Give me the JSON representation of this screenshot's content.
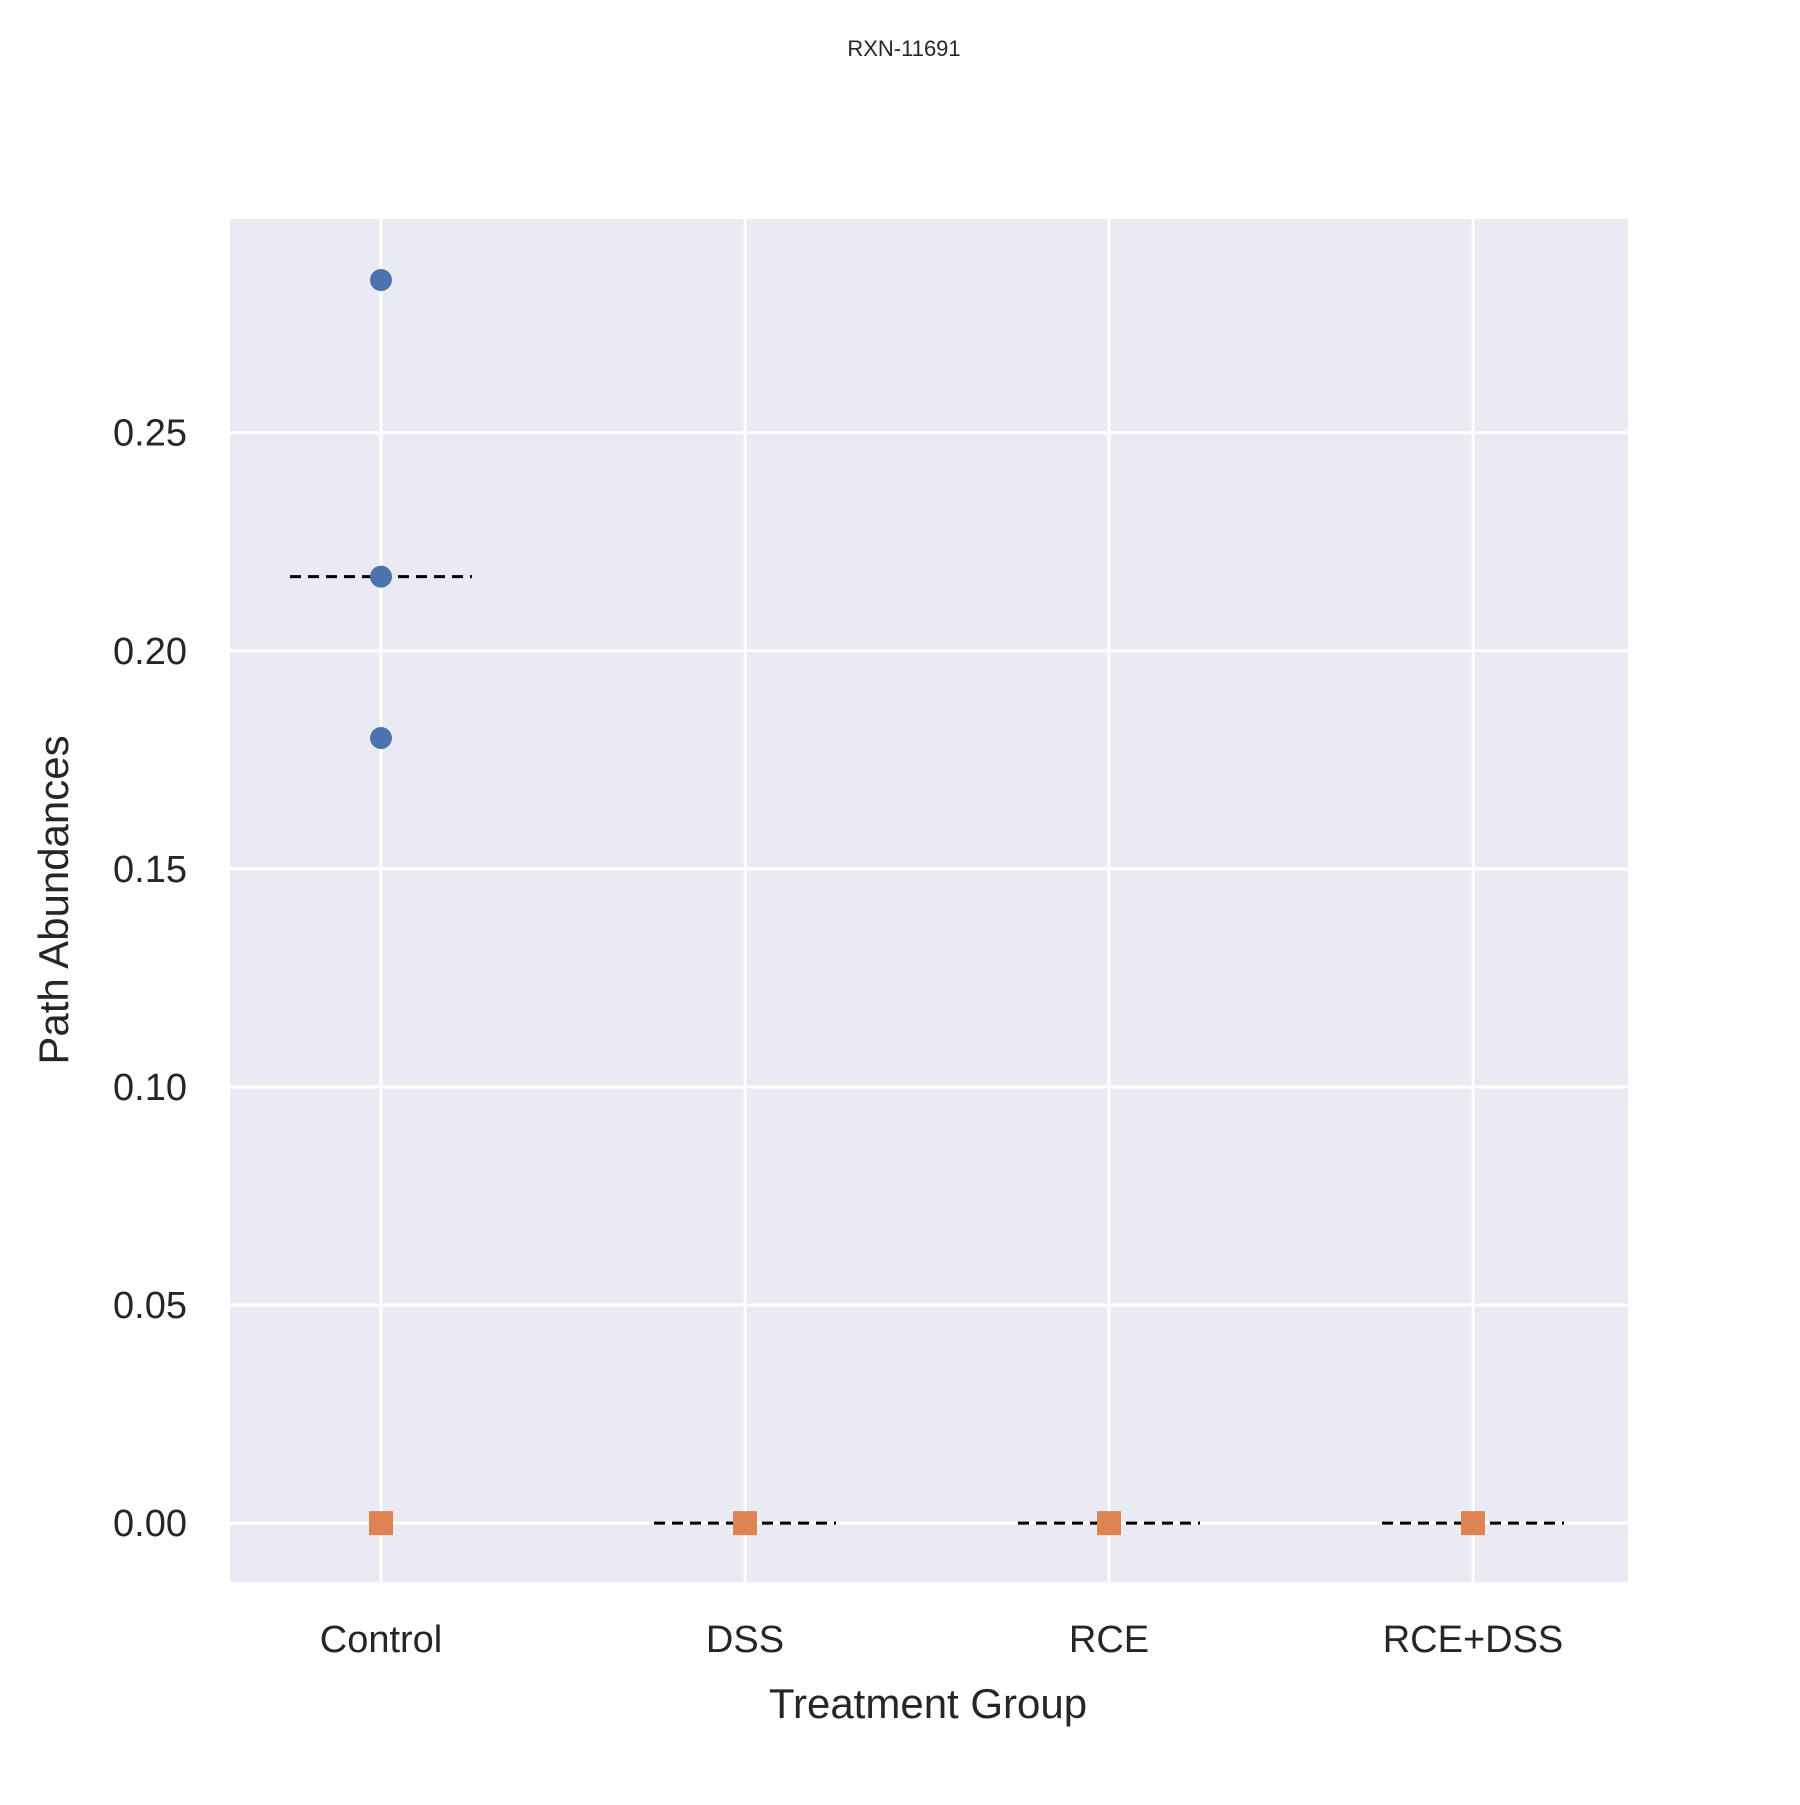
{
  "chart_data": {
    "type": "scatter",
    "title": "RXN-11691",
    "xlabel": "Treatment Group",
    "ylabel": "Path Abundances",
    "categories": [
      "Control",
      "DSS",
      "RCE",
      "RCE+DSS"
    ],
    "ylim": [
      -0.0135,
      0.299
    ],
    "yticks": [
      "0.00",
      "0.05",
      "0.10",
      "0.15",
      "0.20",
      "0.25"
    ],
    "grid": true,
    "legend": "none",
    "colors": {
      "background": "#eaeaf2",
      "grid": "#ffffff",
      "circle_series": "#4c72b0",
      "square_series": "#dd8452",
      "mean_line": "#000000"
    },
    "series": [
      {
        "marker": "circle",
        "points": [
          {
            "category": "Control",
            "value": 0.285
          },
          {
            "category": "Control",
            "value": 0.217
          },
          {
            "category": "Control",
            "value": 0.18
          }
        ]
      },
      {
        "marker": "square",
        "points": [
          {
            "category": "Control",
            "value": 0.0
          },
          {
            "category": "DSS",
            "value": 0.0
          },
          {
            "category": "RCE",
            "value": 0.0
          },
          {
            "category": "RCE+DSS",
            "value": 0.0
          }
        ]
      }
    ],
    "mean_lines": [
      {
        "category": "Control",
        "value": 0.217
      },
      {
        "category": "DSS",
        "value": 0.0
      },
      {
        "category": "RCE",
        "value": 0.0
      },
      {
        "category": "RCE+DSS",
        "value": 0.0
      }
    ]
  }
}
